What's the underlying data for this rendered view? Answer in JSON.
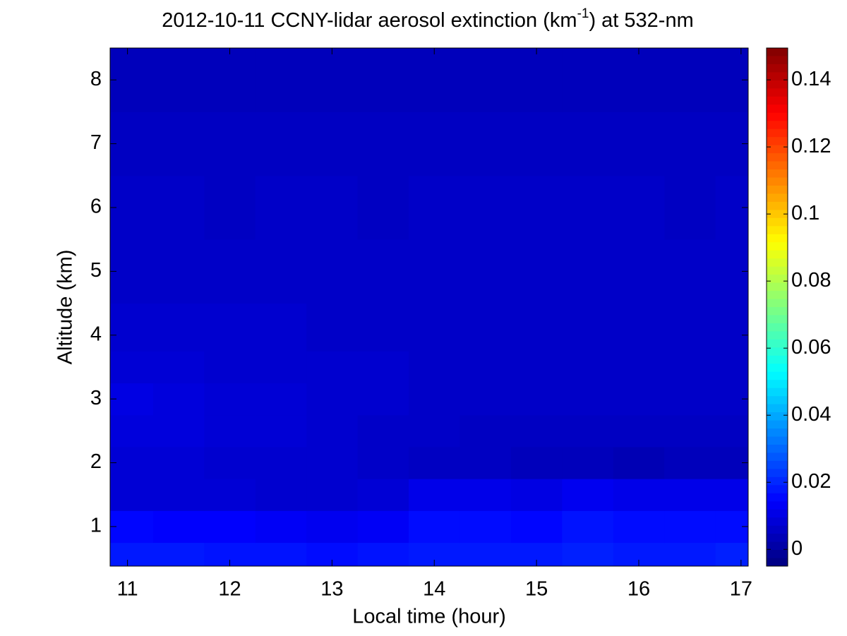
{
  "chart_data": {
    "type": "heatmap",
    "title": [
      "2012-10-11 CCNY-lidar aerosol extinction (km",
      "-1",
      ") at 532-nm"
    ],
    "x_label": "Local time (hour)",
    "y_label": "Altitude (km)",
    "x": [
      11,
      11.5,
      12,
      12.5,
      13,
      13.5,
      14,
      14.5,
      15,
      15.5,
      16,
      16.5,
      17
    ],
    "y": [
      0.5,
      1,
      1.5,
      2,
      2.5,
      3,
      3.5,
      4,
      5,
      6,
      7,
      8
    ],
    "z": [
      [
        0.018,
        0.018,
        0.017,
        0.017,
        0.016,
        0.017,
        0.018,
        0.018,
        0.018,
        0.019,
        0.018,
        0.018,
        0.019
      ],
      [
        0.015,
        0.014,
        0.014,
        0.013,
        0.012,
        0.013,
        0.016,
        0.016,
        0.015,
        0.017,
        0.016,
        0.016,
        0.016
      ],
      [
        0.008,
        0.008,
        0.008,
        0.007,
        0.007,
        0.008,
        0.011,
        0.011,
        0.01,
        0.012,
        0.011,
        0.011,
        0.011
      ],
      [
        0.008,
        0.008,
        0.007,
        0.007,
        0.007,
        0.006,
        0.005,
        0.005,
        0.004,
        0.004,
        0.003,
        0.004,
        0.004
      ],
      [
        0.009,
        0.009,
        0.008,
        0.008,
        0.007,
        0.006,
        0.006,
        0.005,
        0.005,
        0.005,
        0.005,
        0.005,
        0.005
      ],
      [
        0.01,
        0.009,
        0.008,
        0.008,
        0.007,
        0.007,
        0.006,
        0.006,
        0.006,
        0.006,
        0.006,
        0.006,
        0.006
      ],
      [
        0.008,
        0.008,
        0.007,
        0.007,
        0.007,
        0.007,
        0.006,
        0.006,
        0.006,
        0.006,
        0.006,
        0.006,
        0.006
      ],
      [
        0.007,
        0.007,
        0.007,
        0.007,
        0.006,
        0.006,
        0.006,
        0.006,
        0.006,
        0.006,
        0.006,
        0.006,
        0.006
      ],
      [
        0.006,
        0.006,
        0.006,
        0.006,
        0.006,
        0.006,
        0.006,
        0.006,
        0.006,
        0.006,
        0.006,
        0.006,
        0.006
      ],
      [
        0.006,
        0.006,
        0.005,
        0.006,
        0.006,
        0.005,
        0.006,
        0.006,
        0.006,
        0.006,
        0.006,
        0.005,
        0.006
      ],
      [
        0.005,
        0.005,
        0.005,
        0.005,
        0.005,
        0.005,
        0.005,
        0.005,
        0.005,
        0.005,
        0.005,
        0.005,
        0.005
      ],
      [
        0.004,
        0.004,
        0.004,
        0.004,
        0.004,
        0.004,
        0.004,
        0.004,
        0.004,
        0.004,
        0.004,
        0.004,
        0.004
      ]
    ],
    "colormap": "jet",
    "xlim": [
      10.83,
      17.07
    ],
    "xticks": [
      11,
      12,
      13,
      14,
      15,
      16,
      17
    ],
    "ylim": [
      0.38,
      8.5
    ],
    "yticks": [
      1,
      2,
      3,
      4,
      5,
      6,
      7,
      8
    ],
    "clim": [
      -0.005,
      0.1495
    ],
    "cticks": [
      0,
      0.02,
      0.04,
      0.06,
      0.08,
      0.1,
      0.12,
      0.14
    ]
  }
}
